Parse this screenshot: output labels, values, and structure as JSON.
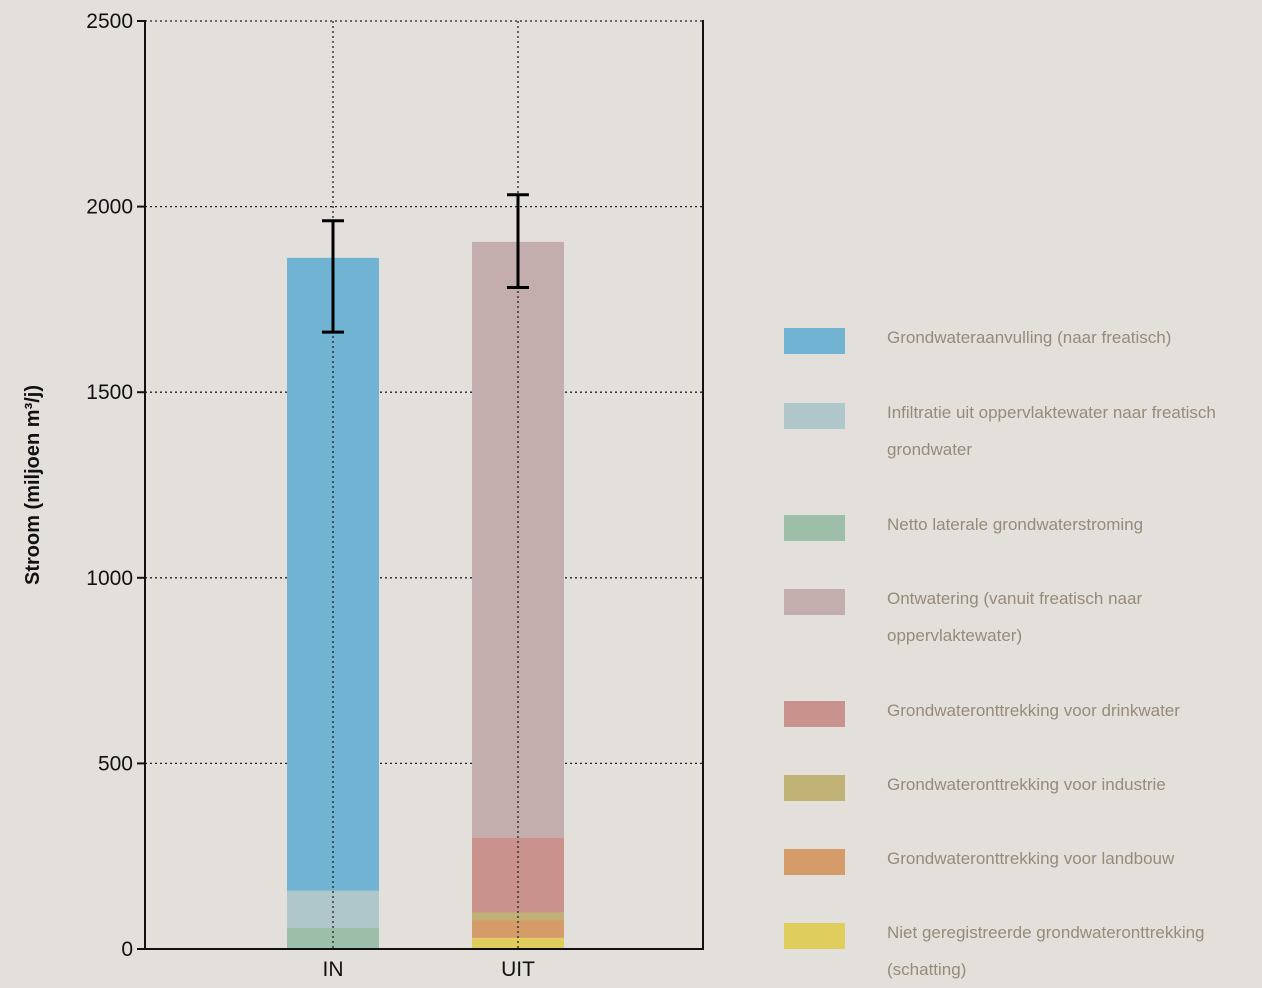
{
  "chart_data": {
    "type": "bar",
    "stacked": true,
    "title": "",
    "xlabel": "",
    "ylabel": "Stroom (miljoen m³/j)",
    "ylim": [
      0,
      2500
    ],
    "yticks": [
      0,
      500,
      1000,
      1500,
      2000,
      2500
    ],
    "grid": true,
    "legend_position": "right",
    "categories": [
      "IN",
      "UIT"
    ],
    "series": [
      {
        "name": "Grondwateraanvulling (naar freatisch)",
        "color": "#70b3d3",
        "values": [
          1705,
          0
        ]
      },
      {
        "name": "Infiltratie uit oppervlaktewater naar freatisch grondwater",
        "color": "#afc6ca",
        "values": [
          100,
          0
        ]
      },
      {
        "name": "Netto laterale grondwaterstroming",
        "color": "#9dbfaa",
        "values": [
          57,
          0
        ]
      },
      {
        "name": "Ontwatering (vanuit freatisch naar oppervlaktewater)",
        "color": "#c3adad",
        "values": [
          0,
          1605
        ]
      },
      {
        "name": "Grondwateronttrekking voor drinkwater",
        "color": "#c9928c",
        "values": [
          0,
          202
        ]
      },
      {
        "name": "Grondwateronttrekking voor industrie",
        "color": "#bfb274",
        "values": [
          0,
          20
        ]
      },
      {
        "name": "Grondwateronttrekking voor landbouw",
        "color": "#d59c69",
        "values": [
          0,
          48
        ]
      },
      {
        "name": "Niet geregistreerde grondwateronttrekking (schatting)",
        "color": "#dfce5e",
        "values": [
          0,
          30
        ]
      }
    ],
    "error_bars": [
      {
        "category": "IN",
        "low": 1662,
        "high": 1962
      },
      {
        "category": "UIT",
        "low": 1782,
        "high": 2032
      }
    ]
  }
}
